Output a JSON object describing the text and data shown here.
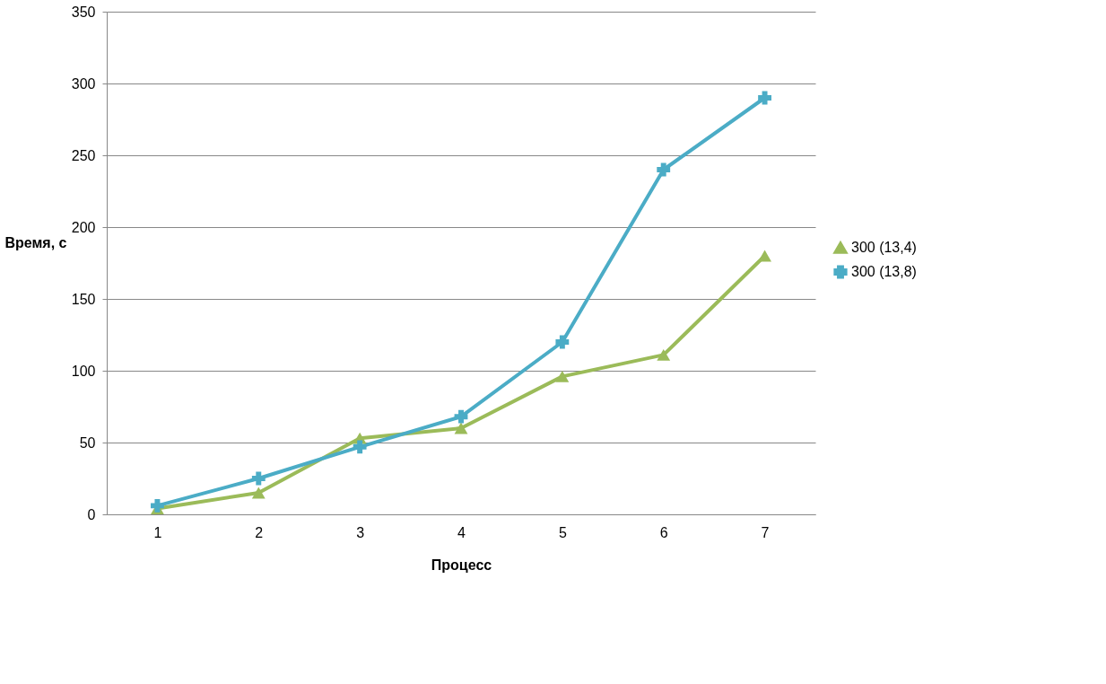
{
  "chart_data": {
    "type": "line",
    "xlabel": "Процесс",
    "ylabel": "Время, с",
    "categories": [
      "1",
      "2",
      "3",
      "4",
      "5",
      "6",
      "7"
    ],
    "series": [
      {
        "name": "300 (13,4)",
        "color": "#9bbb59",
        "marker": "triangle",
        "values": [
          4,
          15,
          53,
          60,
          96,
          111,
          180
        ]
      },
      {
        "name": "300 (13,8)",
        "color": "#4bacc6",
        "marker": "cross",
        "values": [
          6,
          25,
          47,
          68,
          120,
          240,
          290
        ]
      }
    ],
    "ylim": [
      0,
      350
    ],
    "yticks": [
      0,
      50,
      100,
      150,
      200,
      250,
      300,
      350
    ],
    "grid": "y",
    "legend": "right",
    "line_style": "solid"
  }
}
